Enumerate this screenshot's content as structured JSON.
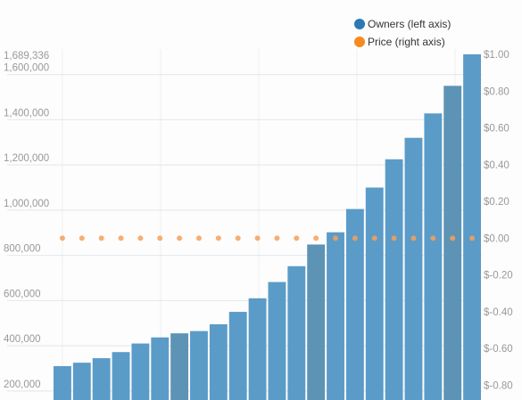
{
  "chart_data": {
    "type": "bar",
    "series": [
      {
        "name": "Owners (left axis)",
        "type": "bar",
        "axis": "left",
        "color": "#5b9bc8",
        "values": [
          310000,
          325000,
          345000,
          372000,
          410000,
          437000,
          455000,
          465000,
          495000,
          550000,
          610000,
          682000,
          752000,
          848000,
          902000,
          1005000,
          1100000,
          1225000,
          1320000,
          1428000,
          1550000,
          1689336
        ]
      },
      {
        "name": "Price (right axis)",
        "type": "scatter",
        "axis": "right",
        "color": "#f5a05a",
        "values": [
          0,
          0,
          0,
          0,
          0,
          0,
          0,
          0,
          0,
          0,
          0,
          0,
          0,
          0,
          0,
          0,
          0,
          0,
          0,
          0,
          0,
          0
        ]
      }
    ],
    "left_axis": {
      "range": [
        160000,
        1689336
      ],
      "ticks": [
        200000,
        400000,
        600000,
        800000,
        1000000,
        1200000,
        1400000,
        1600000
      ],
      "tick_labels": [
        "200,000",
        "400,000",
        "600,000",
        "800,000",
        "1,000,000",
        "1,200,000",
        "1,400,000",
        "1,600,000"
      ],
      "max_label": "1,689,336"
    },
    "right_axis": {
      "range": [
        -0.88,
        1.0
      ],
      "ticks": [
        -0.8,
        -0.6,
        -0.4,
        -0.2,
        0,
        0.2,
        0.4,
        0.6,
        0.8,
        1.0
      ],
      "tick_labels": [
        "$-0.80",
        "$-0.60",
        "$-0.40",
        "$-0.20",
        "$0.00",
        "$0.20",
        "$0.40",
        "$0.60",
        "$0.80",
        "$1.00"
      ]
    },
    "highlighted_bars": [
      6,
      13,
      20
    ],
    "highlight_color": "#5d94b5",
    "grid": true,
    "legend_position": "top-right",
    "legend": [
      {
        "label": "Owners (left axis)",
        "color": "#2b79b5"
      },
      {
        "label": "Price (right axis)",
        "color": "#f58a1f"
      }
    ]
  }
}
